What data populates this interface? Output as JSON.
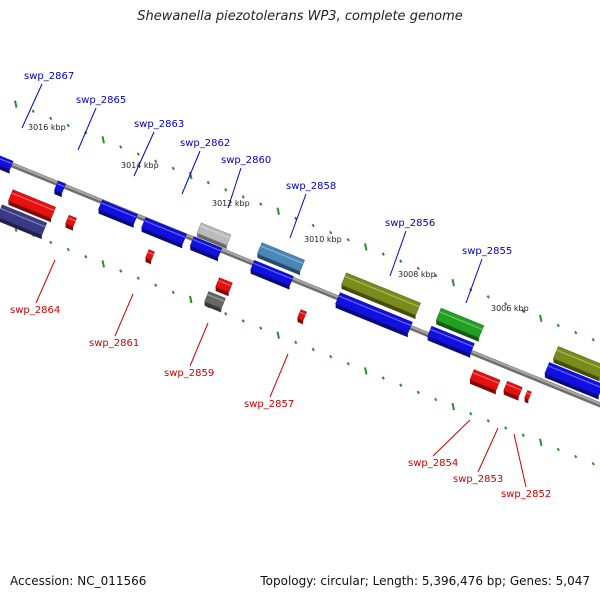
{
  "title": "Shewanella piezotolerans WP3, complete genome",
  "footer": {
    "accession": "Accession: NC_011566",
    "summary": "Topology: circular; Length: 5,396,476 bp; Genes: 5,047"
  },
  "colors": {
    "backbone": "#8a8a8a",
    "top_labels": "#0000cc",
    "bottom_labels": "#cc0000",
    "ticks": "#2e8b2e",
    "gene_blue": "#1010e0",
    "gene_red": "#e51010",
    "gene_olive": "#7b8b1a",
    "gene_green": "#22a022",
    "gene_steel": "#4a86b8",
    "gene_gray": "#666666",
    "gene_lightgray": "#bbbbbb",
    "gene_navy": "#3a3a88"
  },
  "kbp_labels": [
    "3016 kbp",
    "3014 kbp",
    "3012 kbp",
    "3010 kbp",
    "3008 kbp",
    "3006 kbp"
  ],
  "top_gene_labels": [
    "swp_2867",
    "swp_2865",
    "swp_2863",
    "swp_2862",
    "swp_2860",
    "swp_2858",
    "swp_2856",
    "swp_2855"
  ],
  "bottom_gene_labels": [
    "swp_2864",
    "swp_2861",
    "swp_2859",
    "swp_2857",
    "swp_2854",
    "swp_2853",
    "swp_2852"
  ]
}
